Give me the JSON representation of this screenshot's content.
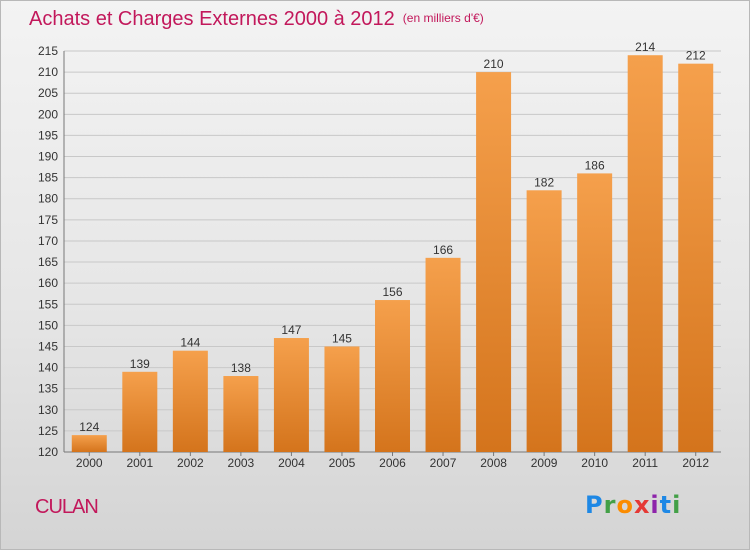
{
  "title": "Achats et Charges Externes 2000 à 2012",
  "subtitle": "(en milliers d'€)",
  "place": "CULAN",
  "logo": {
    "text": "Proxiti",
    "letters": [
      {
        "ch": "P",
        "color": "#1e88e5"
      },
      {
        "ch": "r",
        "color": "#43a047"
      },
      {
        "ch": "o",
        "color": "#fb8c00"
      },
      {
        "ch": "x",
        "color": "#e53935"
      },
      {
        "ch": "i",
        "color": "#8e24aa"
      },
      {
        "ch": "t",
        "color": "#1e88e5"
      },
      {
        "ch": "i",
        "color": "#43a047"
      }
    ]
  },
  "colors": {
    "bar_top": "#f5a04c",
    "bar_bottom": "#d4741c",
    "title": "#c2185b",
    "grid": "#c8c8c8"
  },
  "chart_data": {
    "type": "bar",
    "title": "Achats et Charges Externes 2000 à 2012",
    "categories": [
      "2000",
      "2001",
      "2002",
      "2003",
      "2004",
      "2005",
      "2006",
      "2007",
      "2008",
      "2009",
      "2010",
      "2011",
      "2012"
    ],
    "values": [
      124,
      139,
      144,
      138,
      147,
      145,
      156,
      166,
      210,
      182,
      186,
      214,
      212
    ],
    "ylim": [
      120,
      215
    ],
    "yticks": [
      120,
      125,
      130,
      135,
      140,
      145,
      150,
      155,
      160,
      165,
      170,
      175,
      180,
      185,
      190,
      195,
      200,
      205,
      210,
      215
    ],
    "grid": true,
    "xlabel": "",
    "ylabel": ""
  }
}
